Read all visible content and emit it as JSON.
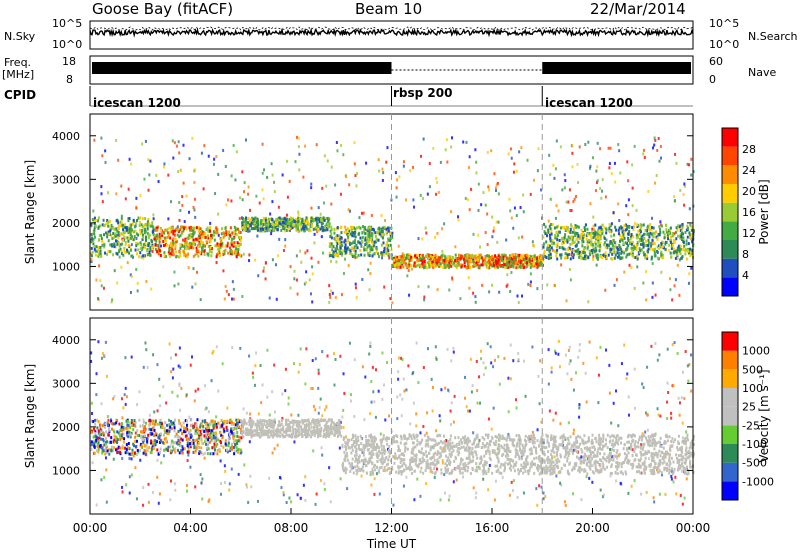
{
  "header": {
    "station": "Goose Bay (fitACF)",
    "beam": "Beam 10",
    "date": "22/Mar/2014"
  },
  "noise_panel": {
    "left_label": "N.Sky",
    "left_top": "10^5",
    "left_bottom": "10^0",
    "right_label": "N.Search",
    "right_top": "10^5",
    "right_bottom": "10^0"
  },
  "freq_panel": {
    "left_label_1": "Freq.",
    "left_label_2": "[MHz]",
    "left_top": "18",
    "left_bottom": "8",
    "right_label": "Nave",
    "right_top": "60",
    "right_bottom": "0"
  },
  "cpid": {
    "label": "CPID",
    "segments": [
      {
        "name": "icescan 1200",
        "start_hour": 0
      },
      {
        "name": "rbsp 200",
        "start_hour": 12
      },
      {
        "name": "icescan 1200",
        "start_hour": 18
      }
    ]
  },
  "colors": {
    "power_scale": [
      "#0000ff",
      "#1f4fbf",
      "#2e8b57",
      "#44aa44",
      "#99cc33",
      "#ffcc00",
      "#ff8c00",
      "#ff4500",
      "#ff0000"
    ],
    "velocity_scale": [
      "#0000ff",
      "#3366cc",
      "#2e8b57",
      "#66cc33",
      "#c0c0c0",
      "#c0c0c0",
      "#ffaa00",
      "#ff7f00",
      "#ff0000"
    ],
    "ground_scatter": "#c0c0b8"
  },
  "chart_data": [
    {
      "type": "heatmap",
      "panel": "power",
      "ylabel": "Slant Range [km]",
      "ylim": [
        0,
        4500
      ],
      "yticks": [
        "1000",
        "2000",
        "3000",
        "4000"
      ],
      "xlim": [
        0,
        24
      ],
      "colorbar_label": "Power [dB]",
      "colorbar_ticks": [
        "4",
        "8",
        "12",
        "16",
        "20",
        "24",
        "28"
      ],
      "colorbar_range": [
        0,
        32
      ],
      "bands": [
        {
          "start_hour": 0.0,
          "end_hour": 2.5,
          "range_center_km": 1700,
          "range_width_km": 900,
          "level": "mid"
        },
        {
          "start_hour": 2.5,
          "end_hour": 6.0,
          "range_center_km": 1600,
          "range_width_km": 700,
          "level": "high"
        },
        {
          "start_hour": 6.0,
          "end_hour": 9.5,
          "range_center_km": 2000,
          "range_width_km": 300,
          "level": "mid"
        },
        {
          "start_hour": 9.5,
          "end_hour": 12.0,
          "range_center_km": 1600,
          "range_width_km": 700,
          "level": "mid"
        },
        {
          "start_hour": 12.0,
          "end_hour": 18.0,
          "range_center_km": 1150,
          "range_width_km": 300,
          "level": "high"
        },
        {
          "start_hour": 18.0,
          "end_hour": 24.0,
          "range_center_km": 1600,
          "range_width_km": 800,
          "level": "mid"
        }
      ]
    },
    {
      "type": "heatmap",
      "panel": "velocity",
      "ylabel": "Slant Range [km]",
      "xlabel": "Time UT",
      "ylim": [
        0,
        4500
      ],
      "yticks": [
        "1000",
        "2000",
        "3000",
        "4000"
      ],
      "xlim": [
        0,
        24
      ],
      "xticks": [
        "00:00",
        "04:00",
        "08:00",
        "12:00",
        "16:00",
        "20:00",
        "00:00"
      ],
      "colorbar_label": "Velocity [m s⁻¹]",
      "colorbar_ticks": [
        "1000",
        "500",
        "100",
        "25",
        "-25",
        "-100",
        "-500",
        "-1000"
      ],
      "bands": [
        {
          "start_hour": 0.0,
          "end_hour": 6.0,
          "range_center_km": 1800,
          "range_width_km": 800,
          "level": "mixed"
        },
        {
          "start_hour": 6.0,
          "end_hour": 10.0,
          "range_center_km": 2000,
          "range_width_km": 400,
          "level": "ground"
        },
        {
          "start_hour": 10.0,
          "end_hour": 24.0,
          "range_center_km": 1400,
          "range_width_km": 900,
          "level": "ground"
        }
      ]
    }
  ]
}
